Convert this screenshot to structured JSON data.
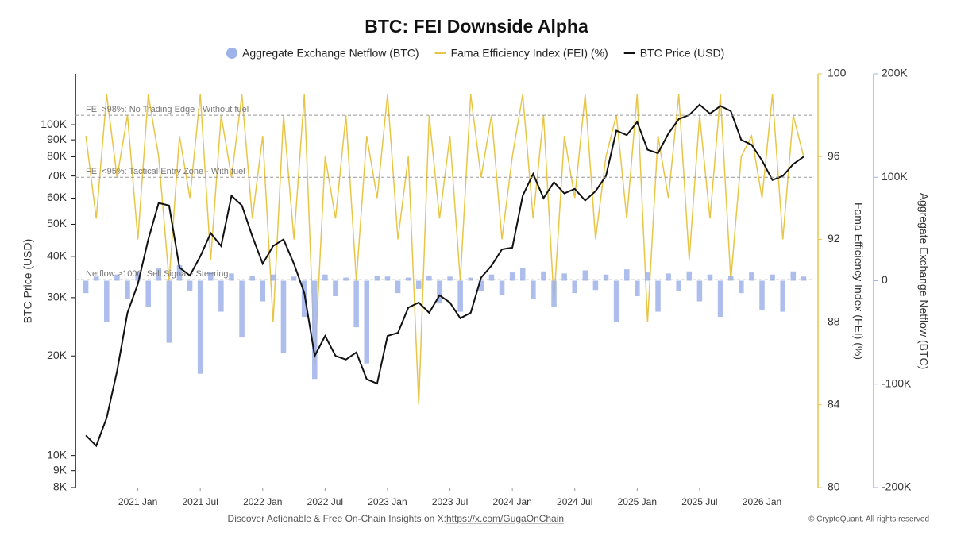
{
  "chart_data": {
    "type": "combo",
    "title": "BTC: FEI Downside Alpha",
    "x": [
      "2020-08",
      "2020-09",
      "2020-10",
      "2020-11",
      "2020-12",
      "2021-01",
      "2021-02",
      "2021-03",
      "2021-04",
      "2021-05",
      "2021-06",
      "2021-07",
      "2021-08",
      "2021-09",
      "2021-10",
      "2021-11",
      "2021-12",
      "2022-01",
      "2022-02",
      "2022-03",
      "2022-04",
      "2022-05",
      "2022-06",
      "2022-07",
      "2022-08",
      "2022-09",
      "2022-10",
      "2022-11",
      "2022-12",
      "2023-01",
      "2023-02",
      "2023-03",
      "2023-04",
      "2023-05",
      "2023-06",
      "2023-07",
      "2023-08",
      "2023-09",
      "2023-10",
      "2023-11",
      "2023-12",
      "2024-01",
      "2024-02",
      "2024-03",
      "2024-04",
      "2024-05",
      "2024-06",
      "2024-07",
      "2024-08",
      "2024-09",
      "2024-10",
      "2024-11",
      "2024-12",
      "2025-01",
      "2025-02",
      "2025-03",
      "2025-04",
      "2025-05",
      "2025-06",
      "2025-07",
      "2025-08",
      "2025-09",
      "2025-10",
      "2025-11",
      "2025-12",
      "2026-01",
      "2026-02",
      "2026-03",
      "2026-04",
      "2026-05"
    ],
    "series": [
      {
        "name": "Aggregate Exchange Netflow (BTC)",
        "type": "bar",
        "axis": "y3",
        "color": "#9fb3ea",
        "values": [
          -12000,
          4000,
          -40000,
          6000,
          -18000,
          9000,
          -25000,
          12000,
          -60000,
          15000,
          -10000,
          -90000,
          8000,
          -30000,
          7000,
          -55000,
          5000,
          -20000,
          6000,
          -70000,
          4000,
          -35000,
          -95000,
          6000,
          -15000,
          3000,
          -45000,
          -80000,
          5000,
          4000,
          -12000,
          3000,
          -8000,
          5000,
          -22000,
          4000,
          -30000,
          3000,
          -10000,
          6000,
          -14000,
          8000,
          12000,
          -18000,
          9000,
          -25000,
          7000,
          -12000,
          10000,
          -9000,
          6000,
          -40000,
          11000,
          -15000,
          8000,
          -30000,
          7000,
          -10000,
          9000,
          -20000,
          6000,
          -35000,
          5000,
          -12000,
          8000,
          -28000,
          6000,
          -30000,
          9000,
          4000
        ]
      },
      {
        "name": "Fama Efficiency Index (FEI) (%)",
        "type": "line",
        "axis": "y2",
        "color": "#e8c547",
        "values": [
          97,
          93,
          99,
          95,
          98,
          92,
          99,
          96,
          90,
          97,
          94,
          99,
          91,
          98,
          95,
          99,
          93,
          97,
          88,
          98,
          92,
          99,
          86,
          96,
          93,
          98,
          90,
          97,
          94,
          99,
          92,
          96,
          84,
          98,
          93,
          97,
          90,
          99,
          95,
          98,
          92,
          96,
          99,
          93,
          98,
          89,
          97,
          94,
          99,
          92,
          96,
          98,
          93,
          99,
          88,
          97,
          94,
          99,
          91,
          98,
          93,
          99,
          90,
          96,
          97,
          94,
          99,
          92,
          98,
          96
        ]
      },
      {
        "name": "BTC Price (USD)",
        "type": "line",
        "axis": "y",
        "color": "#111111",
        "values": [
          11500,
          10700,
          13000,
          18000,
          27000,
          33000,
          45000,
          58000,
          57000,
          37000,
          35000,
          40000,
          47000,
          43000,
          61000,
          57000,
          46000,
          38000,
          43000,
          45000,
          38000,
          31000,
          20000,
          23000,
          20000,
          19500,
          20500,
          17000,
          16500,
          23000,
          23500,
          28000,
          29000,
          27000,
          30500,
          29000,
          26000,
          27000,
          34500,
          37500,
          42000,
          42500,
          61000,
          71000,
          60000,
          67000,
          62000,
          64000,
          59000,
          63000,
          70000,
          96000,
          93000,
          102000,
          84000,
          82000,
          94000,
          104000,
          107000,
          115000,
          108000,
          114000,
          110000,
          90000,
          87000,
          78000,
          68000,
          70000,
          76000,
          80000
        ]
      }
    ],
    "xlim": [
      "2020-07",
      "2026-06"
    ],
    "xticks": [
      {
        "value": "2021-01",
        "label": "2021 Jan"
      },
      {
        "value": "2021-07",
        "label": "2021 Jul"
      },
      {
        "value": "2022-01",
        "label": "2022 Jan"
      },
      {
        "value": "2022-07",
        "label": "2022 Jul"
      },
      {
        "value": "2023-01",
        "label": "2023 Jan"
      },
      {
        "value": "2023-07",
        "label": "2023 Jul"
      },
      {
        "value": "2024-01",
        "label": "2024 Jan"
      },
      {
        "value": "2024-07",
        "label": "2024 Jul"
      },
      {
        "value": "2025-01",
        "label": "2025 Jan"
      },
      {
        "value": "2025-07",
        "label": "2025 Jul"
      },
      {
        "value": "2026-01",
        "label": "2026 Jan"
      }
    ],
    "ylabel": "BTC Price (USD)",
    "ylog": true,
    "ylim": [
      8000,
      142500
    ],
    "yticks": [
      {
        "value": 8000,
        "label": "8K"
      },
      {
        "value": 9000,
        "label": "9K"
      },
      {
        "value": 10000,
        "label": "10K"
      },
      {
        "value": 20000,
        "label": "20K"
      },
      {
        "value": 30000,
        "label": "30K"
      },
      {
        "value": 40000,
        "label": "40K"
      },
      {
        "value": 50000,
        "label": "50K"
      },
      {
        "value": 60000,
        "label": "60K"
      },
      {
        "value": 70000,
        "label": "70K"
      },
      {
        "value": 80000,
        "label": "80K"
      },
      {
        "value": 90000,
        "label": "90K"
      },
      {
        "value": 100000,
        "label": "100K"
      }
    ],
    "y2label": "Fama Efficiency Index (FEI) (%)",
    "y2lim": [
      80,
      100
    ],
    "y2ticks": [
      80,
      84,
      88,
      92,
      96,
      100
    ],
    "y3label": "Aggregate Exchange Netflow (BTC)",
    "y3lim": [
      -200000,
      200000
    ],
    "y3ticks": [
      {
        "value": 200000,
        "label": "200K"
      },
      {
        "value": 100000,
        "label": "100K"
      },
      0,
      {
        "value": -100000,
        "label": "-100K"
      },
      {
        "value": -200000,
        "label": "-200K"
      }
    ],
    "reference_lines": [
      {
        "label": "FEI >98%: No Trading Edge - Without fuel",
        "value": 98,
        "axis": "y2"
      },
      {
        "label": "FEI <95%: Tactical Entry Zone - With fuel",
        "value": 95,
        "axis": "y2"
      },
      {
        "label": "Netflow >1000: Sell Signal - Steering",
        "value": 1000,
        "axis": "y3"
      }
    ]
  },
  "footer": {
    "text": "Discover Actionable & Free On-Chain Insights on X: ",
    "link": "https://x.com/GugaOnChain",
    "credit": "© CryptoQuant. All rights reserved"
  }
}
